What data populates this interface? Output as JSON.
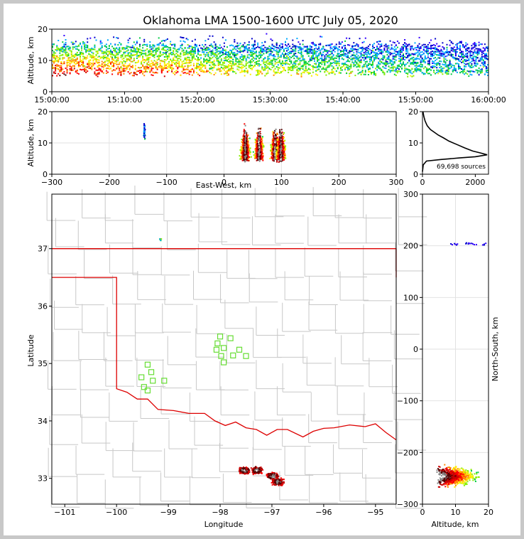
{
  "chart_data": {
    "type": "lma-multipanel",
    "title": "Oklahoma LMA 1500-1600 UTC July 05, 2020",
    "source_count_label": "69,698 sources",
    "time_height": {
      "ylabel": "Altitude, km",
      "ylim": [
        0,
        20
      ],
      "yticks": [
        "0",
        "10",
        "20"
      ],
      "xticks": [
        "15:00:00",
        "15:10:00",
        "15:20:00",
        "15:30:00",
        "15:40:00",
        "15:50:00",
        "16:00:00"
      ],
      "x_minutes": [
        0,
        10,
        20,
        30,
        40,
        50,
        60
      ]
    },
    "ew_height": {
      "xlabel": "East-West, km",
      "ylabel": "Altitude, km",
      "xlim": [
        -300,
        300
      ],
      "ylim": [
        0,
        20
      ],
      "xticks": [
        "-300",
        "-200",
        "-100",
        "0",
        "100",
        "200",
        "300"
      ],
      "xtick_values": [
        -300,
        -200,
        -100,
        0,
        100,
        200,
        300
      ],
      "yticks": [
        "0",
        "10",
        "20"
      ],
      "clusters": [
        {
          "x": 36,
          "alt": 10
        },
        {
          "x": 60,
          "alt": 11
        },
        {
          "x": 88,
          "alt": 12
        },
        {
          "x": 98,
          "alt": 9
        },
        {
          "x": -140,
          "alt": 14
        }
      ]
    },
    "alt_hist": {
      "xticks": [
        "0",
        "2000"
      ],
      "xtick_values": [
        0,
        2000
      ],
      "yticks": [
        "0",
        "10",
        "20"
      ],
      "xlim": [
        0,
        2500
      ],
      "ylim": [
        0,
        20
      ],
      "profile": [
        [
          0,
          0.8
        ],
        [
          30,
          3.0
        ],
        [
          150,
          4.2
        ],
        [
          700,
          4.7
        ],
        [
          1400,
          5.2
        ],
        [
          2000,
          5.6
        ],
        [
          2450,
          6.2
        ],
        [
          2200,
          6.8
        ],
        [
          1900,
          7.4
        ],
        [
          1600,
          8.4
        ],
        [
          1300,
          9.5
        ],
        [
          1000,
          10.6
        ],
        [
          800,
          11.6
        ],
        [
          600,
          12.5
        ],
        [
          450,
          13.4
        ],
        [
          300,
          14.3
        ],
        [
          180,
          15.5
        ],
        [
          100,
          17.0
        ],
        [
          50,
          18.5
        ],
        [
          20,
          20
        ]
      ]
    },
    "map": {
      "xlabel": "Longitude",
      "ylabel": "Latitude",
      "xlim": [
        -101.25,
        -94.6
      ],
      "ylim": [
        32.55,
        37.95
      ],
      "xticks": [
        "-101",
        "-100",
        "-99",
        "-98",
        "-97",
        "-96",
        "-95"
      ],
      "xtick_values": [
        -101,
        -100,
        -99,
        -98,
        -97,
        -96,
        -95
      ],
      "yticks": [
        "33",
        "34",
        "35",
        "36",
        "37"
      ],
      "ytick_values": [
        33,
        34,
        35,
        36,
        37
      ],
      "stations": [
        [
          -98.0,
          35.47
        ],
        [
          -97.8,
          35.44
        ],
        [
          -98.05,
          35.35
        ],
        [
          -97.93,
          35.27
        ],
        [
          -98.07,
          35.24
        ],
        [
          -97.63,
          35.24
        ],
        [
          -97.75,
          35.14
        ],
        [
          -97.5,
          35.13
        ],
        [
          -97.98,
          35.13
        ],
        [
          -97.93,
          35.02
        ],
        [
          -99.4,
          34.98
        ],
        [
          -99.33,
          34.85
        ],
        [
          -99.52,
          34.76
        ],
        [
          -99.3,
          34.7
        ],
        [
          -99.08,
          34.7
        ],
        [
          -99.47,
          34.59
        ],
        [
          -99.4,
          34.53
        ]
      ],
      "clusters": [
        {
          "lon": -97.55,
          "lat": 33.15
        },
        {
          "lon": -97.3,
          "lat": 33.15
        },
        {
          "lon": -97.0,
          "lat": 33.05
        },
        {
          "lon": -96.9,
          "lat": 32.95
        }
      ]
    },
    "ns_alt": {
      "xlabel": "Altitude, km",
      "ylabel": "North-South, km",
      "xlim": [
        0,
        20
      ],
      "ylim": [
        -300,
        300
      ],
      "xticks": [
        "0",
        "10",
        "20"
      ],
      "xtick_values": [
        0,
        10,
        20
      ],
      "yticks": [
        "-300",
        "-200",
        "-100",
        "0",
        "100",
        "200",
        "300"
      ],
      "ytick_values": [
        -300,
        -200,
        -100,
        0,
        100,
        200,
        300
      ]
    },
    "colors": {
      "state_border": "#dd0000",
      "county_lines": "#c8c8c8",
      "stations": "#66dd33",
      "density_scale": [
        "#3300ff",
        "#0000cc",
        "#00aaff",
        "#00cc44",
        "#88ee00",
        "#ffee00",
        "#ff8800",
        "#ff0000",
        "#cc0000",
        "#550000",
        "#888888",
        "#ffffff"
      ]
    }
  }
}
